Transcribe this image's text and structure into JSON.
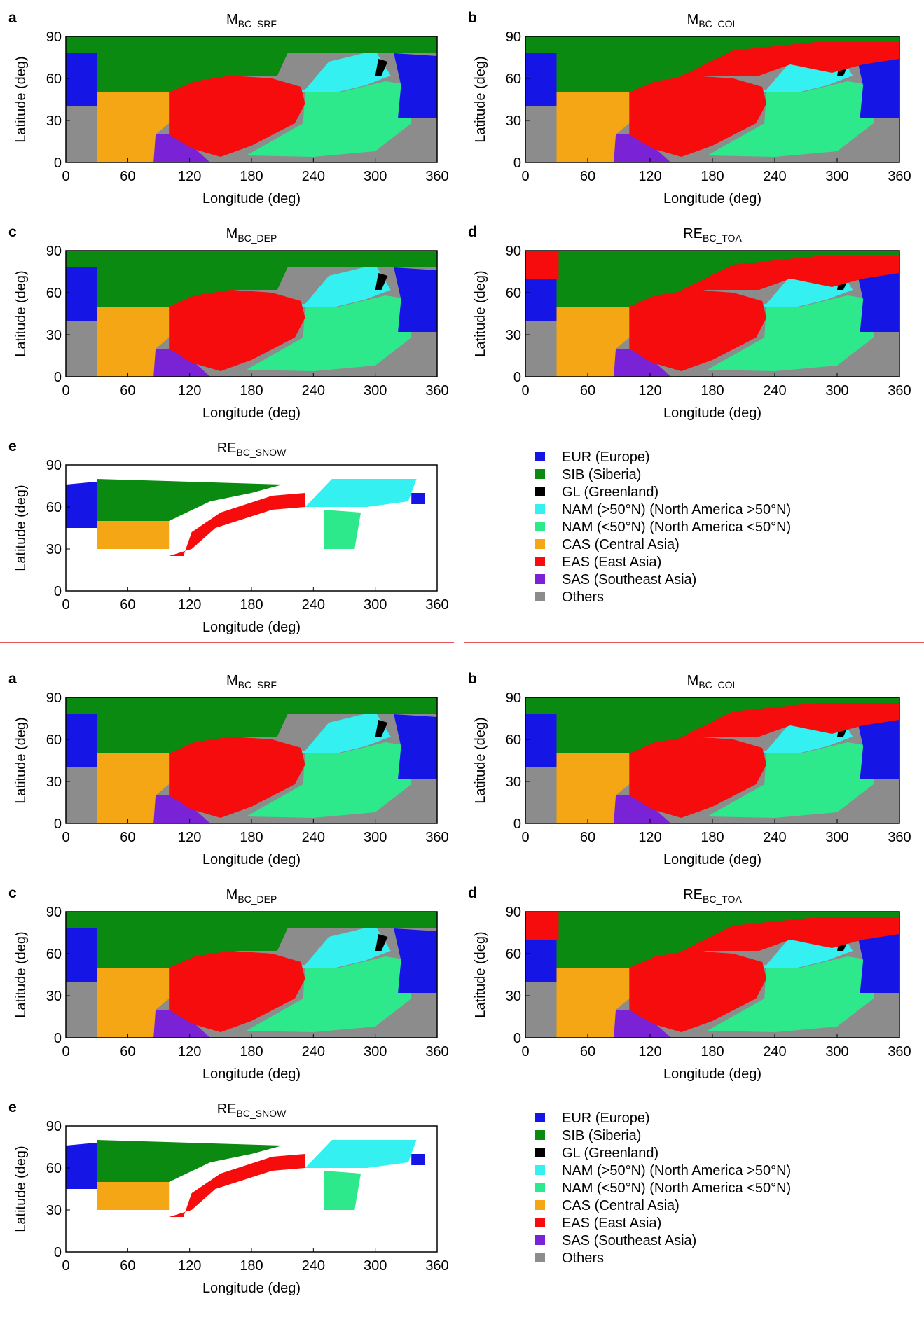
{
  "figures": [
    {
      "panels": [
        {
          "label": "a",
          "title": {
            "main": "M",
            "sub": "BC_SRF"
          },
          "xlabel": "Longitude (deg)",
          "ylabel": "Latitude (deg)",
          "xlim": [
            0,
            360
          ],
          "ylim": [
            0,
            90
          ],
          "xticks": [
            0,
            60,
            120,
            180,
            240,
            300,
            360
          ],
          "yticks": [
            0,
            30,
            60,
            90
          ]
        },
        {
          "label": "b",
          "title": {
            "main": "M",
            "sub": "BC_COL"
          },
          "xlabel": "Longitude (deg)",
          "ylabel": "Latitude (deg)",
          "xlim": [
            0,
            360
          ],
          "ylim": [
            0,
            90
          ],
          "xticks": [
            0,
            60,
            120,
            180,
            240,
            300,
            360
          ],
          "yticks": [
            0,
            30,
            60,
            90
          ]
        },
        {
          "label": "c",
          "title": {
            "main": "M",
            "sub": "BC_DEP"
          },
          "xlabel": "Longitude (deg)",
          "ylabel": "Latitude (deg)",
          "xlim": [
            0,
            360
          ],
          "ylim": [
            0,
            90
          ],
          "xticks": [
            0,
            60,
            120,
            180,
            240,
            300,
            360
          ],
          "yticks": [
            0,
            30,
            60,
            90
          ]
        },
        {
          "label": "d",
          "title": {
            "main": "RE",
            "sub": "BC_TOA"
          },
          "xlabel": "Longitude (deg)",
          "ylabel": "Latitude (deg)",
          "xlim": [
            0,
            360
          ],
          "ylim": [
            0,
            90
          ],
          "xticks": [
            0,
            60,
            120,
            180,
            240,
            300,
            360
          ],
          "yticks": [
            0,
            30,
            60,
            90
          ]
        },
        {
          "label": "e",
          "title": {
            "main": "RE",
            "sub": "BC_SNOW"
          },
          "xlabel": "Longitude (deg)",
          "ylabel": "Latitude (deg)",
          "xlim": [
            0,
            360
          ],
          "ylim": [
            0,
            90
          ],
          "xticks": [
            0,
            60,
            120,
            180,
            240,
            300,
            360
          ],
          "yticks": [
            0,
            30,
            60,
            90
          ]
        }
      ],
      "legend": [
        {
          "label": "EUR (Europe)",
          "color": "#1515e6"
        },
        {
          "label": "SIB (Siberia)",
          "color": "#0b8a12"
        },
        {
          "label": "GL (Greenland)",
          "color": "#000000"
        },
        {
          "label": "NAM (>50°N) (North America >50°N)",
          "color": "#35f0f0"
        },
        {
          "label": "NAM (<50°N) (North America <50°N)",
          "color": "#2ee88c"
        },
        {
          "label": "CAS (Central Asia)",
          "color": "#f5a614"
        },
        {
          "label": "EAS (East Asia)",
          "color": "#f60c0c"
        },
        {
          "label": "SAS (Southeast Asia)",
          "color": "#7a22d6"
        },
        {
          "label": "Others",
          "color": "#8c8c8c"
        }
      ]
    },
    {
      "panels": [
        {
          "label": "a",
          "title": {
            "main": "M",
            "sub": "BC_SRF"
          },
          "xlabel": "Longitude (deg)",
          "ylabel": "Latitude (deg)",
          "xlim": [
            0,
            360
          ],
          "ylim": [
            0,
            90
          ],
          "xticks": [
            0,
            60,
            120,
            180,
            240,
            300,
            360
          ],
          "yticks": [
            0,
            30,
            60,
            90
          ]
        },
        {
          "label": "b",
          "title": {
            "main": "M",
            "sub": "BC_COL"
          },
          "xlabel": "Longitude (deg)",
          "ylabel": "Latitude (deg)",
          "xlim": [
            0,
            360
          ],
          "ylim": [
            0,
            90
          ],
          "xticks": [
            0,
            60,
            120,
            180,
            240,
            300,
            360
          ],
          "yticks": [
            0,
            30,
            60,
            90
          ]
        },
        {
          "label": "c",
          "title": {
            "main": "M",
            "sub": "BC_DEP"
          },
          "xlabel": "Longitude (deg)",
          "ylabel": "Latitude (deg)",
          "xlim": [
            0,
            360
          ],
          "ylim": [
            0,
            90
          ],
          "xticks": [
            0,
            60,
            120,
            180,
            240,
            300,
            360
          ],
          "yticks": [
            0,
            30,
            60,
            90
          ]
        },
        {
          "label": "d",
          "title": {
            "main": "RE",
            "sub": "BC_TOA"
          },
          "xlabel": "Longitude (deg)",
          "ylabel": "Latitude (deg)",
          "xlim": [
            0,
            360
          ],
          "ylim": [
            0,
            90
          ],
          "xticks": [
            0,
            60,
            120,
            180,
            240,
            300,
            360
          ],
          "yticks": [
            0,
            30,
            60,
            90
          ]
        },
        {
          "label": "e",
          "title": {
            "main": "RE",
            "sub": "BC_SNOW"
          },
          "xlabel": "Longitude (deg)",
          "ylabel": "Latitude (deg)",
          "xlim": [
            0,
            360
          ],
          "ylim": [
            0,
            90
          ],
          "xticks": [
            0,
            60,
            120,
            180,
            240,
            300,
            360
          ],
          "yticks": [
            0,
            30,
            60,
            90
          ]
        }
      ],
      "legend": [
        {
          "label": "EUR (Europe)",
          "color": "#1515e6"
        },
        {
          "label": "SIB (Siberia)",
          "color": "#0b8a12"
        },
        {
          "label": "GL (Greenland)",
          "color": "#000000"
        },
        {
          "label": "NAM (>50°N) (North America >50°N)",
          "color": "#35f0f0"
        },
        {
          "label": "NAM (<50°N) (North America <50°N)",
          "color": "#2ee88c"
        },
        {
          "label": "CAS (Central Asia)",
          "color": "#f5a614"
        },
        {
          "label": "EAS (East Asia)",
          "color": "#f60c0c"
        },
        {
          "label": "SAS (Southeast Asia)",
          "color": "#7a22d6"
        },
        {
          "label": "Others",
          "color": "#8c8c8c"
        }
      ]
    }
  ]
}
